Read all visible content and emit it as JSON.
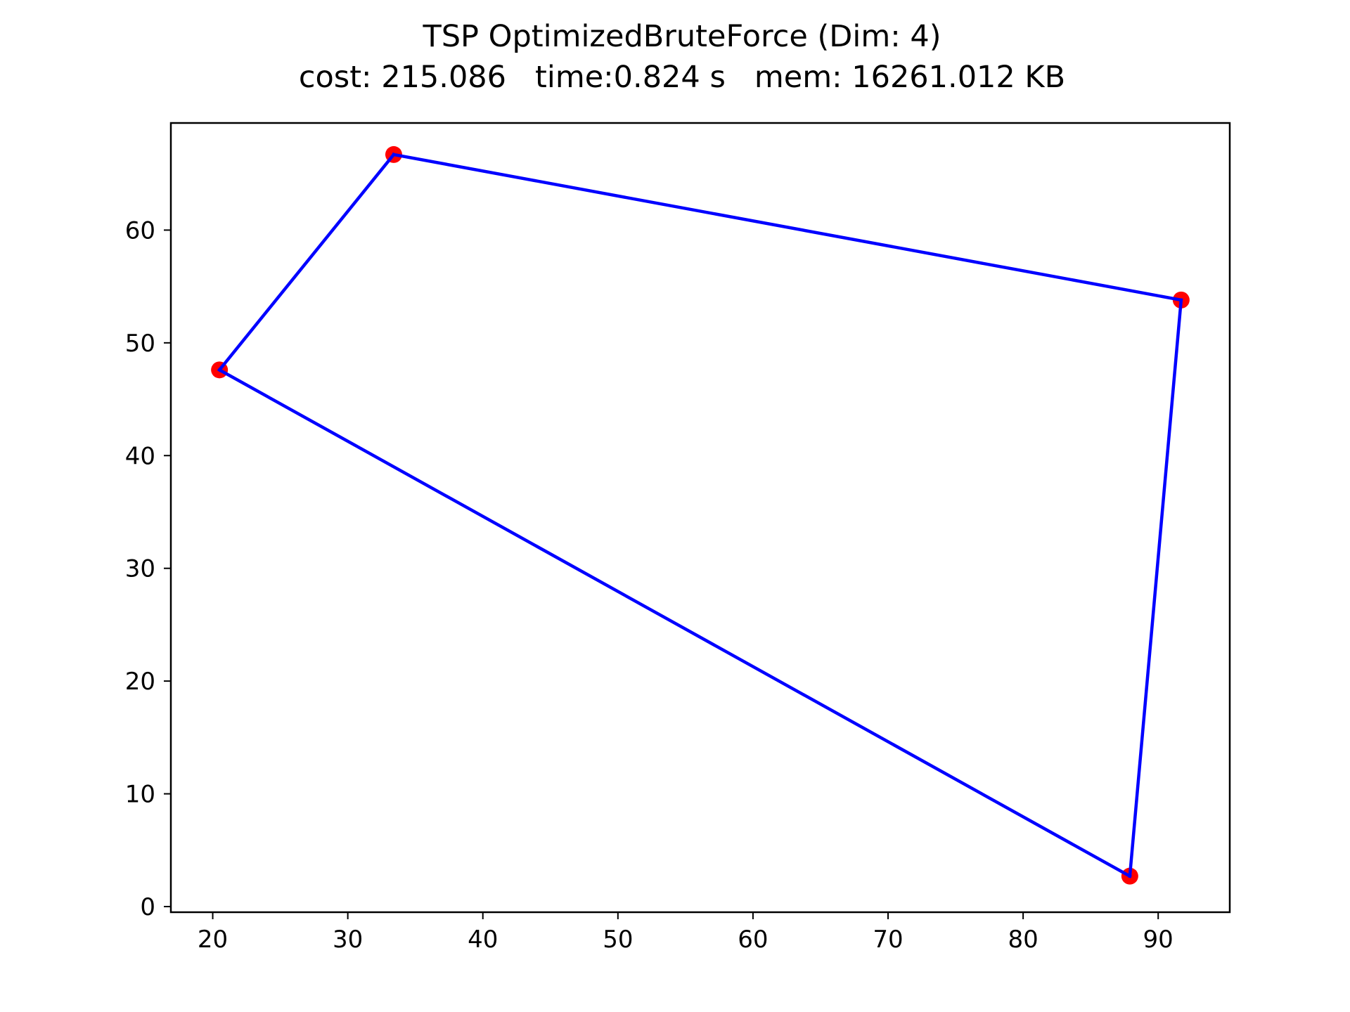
{
  "chart_data": {
    "type": "scatter",
    "title": "TSP OptimizedBruteForce (Dim: 4)",
    "subtitle": "cost: 215.086   time:0.824 s   mem: 16261.012 KB",
    "xlabel": "",
    "ylabel": "",
    "xlim": [
      16.9,
      95.3
    ],
    "ylim": [
      -0.5,
      69.5
    ],
    "xticks": [
      20,
      30,
      40,
      50,
      60,
      70,
      80,
      90
    ],
    "yticks": [
      0,
      10,
      20,
      30,
      40,
      50,
      60
    ],
    "grid": false,
    "points": [
      {
        "x": 20.5,
        "y": 47.6
      },
      {
        "x": 33.4,
        "y": 66.7
      },
      {
        "x": 91.7,
        "y": 53.8
      },
      {
        "x": 87.9,
        "y": 2.7
      }
    ],
    "tour": [
      0,
      1,
      2,
      3,
      0
    ],
    "colors": {
      "point": "#ff0000",
      "line": "#0000ff",
      "axes": "#000000"
    }
  }
}
